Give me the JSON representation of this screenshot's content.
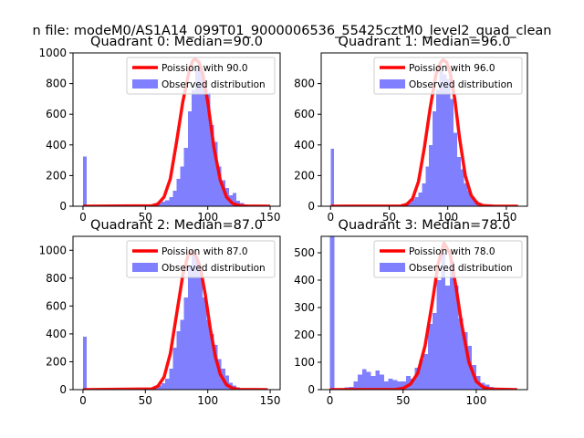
{
  "figure_title": "n file: modeM0/AS1A14_099T01_9000006536_55425cztM0_level2_quad_clean",
  "colors": {
    "hist": "#8080ff",
    "poisson": "#ff0000",
    "axis": "#000000"
  },
  "legend": {
    "observed": "Observed distribution"
  },
  "chart_data": [
    {
      "type": "histogram",
      "title": "Quadrant 0: Median=90.0",
      "median": 90.0,
      "poisson_label": "Poission with 90.0",
      "xlim": [
        -8,
        158
      ],
      "ylim": [
        0,
        1000
      ],
      "xticks": [
        0,
        50,
        100,
        150
      ],
      "yticks": [
        0,
        200,
        400,
        600,
        800,
        1000
      ],
      "bins": [
        [
          0,
          3,
          325
        ],
        [
          51,
          54,
          2
        ],
        [
          54,
          57,
          5
        ],
        [
          57,
          60,
          10
        ],
        [
          60,
          63,
          20
        ],
        [
          63,
          66,
          30
        ],
        [
          66,
          69,
          40
        ],
        [
          69,
          72,
          60
        ],
        [
          72,
          75,
          100
        ],
        [
          75,
          78,
          180
        ],
        [
          78,
          81,
          260
        ],
        [
          81,
          84,
          380
        ],
        [
          84,
          87,
          620
        ],
        [
          87,
          90,
          760
        ],
        [
          90,
          93,
          900
        ],
        [
          93,
          96,
          880
        ],
        [
          96,
          99,
          820
        ],
        [
          99,
          102,
          740
        ],
        [
          102,
          105,
          530
        ],
        [
          105,
          108,
          420
        ],
        [
          108,
          111,
          260
        ],
        [
          111,
          114,
          170
        ],
        [
          114,
          117,
          120
        ],
        [
          117,
          120,
          70
        ],
        [
          120,
          123,
          85
        ],
        [
          123,
          126,
          35
        ],
        [
          126,
          129,
          20
        ],
        [
          129,
          132,
          12
        ],
        [
          132,
          135,
          5
        ],
        [
          135,
          138,
          3
        ]
      ],
      "poisson": [
        [
          0,
          0
        ],
        [
          55,
          3
        ],
        [
          60,
          15
        ],
        [
          65,
          60
        ],
        [
          70,
          180
        ],
        [
          75,
          420
        ],
        [
          80,
          680
        ],
        [
          85,
          880
        ],
        [
          88,
          950
        ],
        [
          90,
          960
        ],
        [
          93,
          940
        ],
        [
          96,
          860
        ],
        [
          100,
          680
        ],
        [
          105,
          380
        ],
        [
          110,
          170
        ],
        [
          115,
          60
        ],
        [
          120,
          18
        ],
        [
          125,
          5
        ],
        [
          130,
          1
        ],
        [
          150,
          0
        ]
      ]
    },
    {
      "type": "histogram",
      "title": "Quadrant 1: Median=96.0",
      "median": 96.0,
      "poisson_label": "Poission with 96.0",
      "xlim": [
        -8,
        168
      ],
      "ylim": [
        0,
        1000
      ],
      "xticks": [
        0,
        50,
        100,
        150
      ],
      "yticks": [
        0,
        200,
        400,
        600,
        800
      ],
      "bins": [
        [
          0,
          3,
          375
        ],
        [
          57,
          60,
          3
        ],
        [
          60,
          63,
          8
        ],
        [
          63,
          66,
          15
        ],
        [
          66,
          69,
          25
        ],
        [
          69,
          72,
          45
        ],
        [
          72,
          75,
          60
        ],
        [
          75,
          78,
          90
        ],
        [
          78,
          81,
          150
        ],
        [
          81,
          84,
          260
        ],
        [
          84,
          87,
          400
        ],
        [
          87,
          90,
          620
        ],
        [
          90,
          93,
          760
        ],
        [
          93,
          96,
          880
        ],
        [
          96,
          99,
          860
        ],
        [
          99,
          102,
          830
        ],
        [
          102,
          105,
          700
        ],
        [
          105,
          108,
          480
        ],
        [
          108,
          111,
          320
        ],
        [
          111,
          114,
          240
        ],
        [
          114,
          117,
          150
        ],
        [
          117,
          120,
          100
        ],
        [
          120,
          123,
          60
        ],
        [
          123,
          126,
          35
        ],
        [
          126,
          129,
          20
        ],
        [
          129,
          132,
          10
        ],
        [
          132,
          135,
          5
        ],
        [
          135,
          138,
          2
        ]
      ],
      "poisson": [
        [
          0,
          0
        ],
        [
          60,
          2
        ],
        [
          65,
          12
        ],
        [
          70,
          50
        ],
        [
          75,
          160
        ],
        [
          80,
          380
        ],
        [
          85,
          640
        ],
        [
          90,
          860
        ],
        [
          94,
          940
        ],
        [
          96,
          955
        ],
        [
          99,
          940
        ],
        [
          102,
          870
        ],
        [
          106,
          700
        ],
        [
          110,
          450
        ],
        [
          115,
          200
        ],
        [
          120,
          70
        ],
        [
          125,
          20
        ],
        [
          130,
          5
        ],
        [
          140,
          0
        ],
        [
          160,
          0
        ]
      ]
    },
    {
      "type": "histogram",
      "title": "Quadrant 2: Median=87.0",
      "median": 87.0,
      "poisson_label": "Poission with 87.0",
      "xlim": [
        -8,
        158
      ],
      "ylim": [
        0,
        1100
      ],
      "xticks": [
        0,
        50,
        100,
        150
      ],
      "yticks": [
        0,
        200,
        400,
        600,
        800,
        1000
      ],
      "bins": [
        [
          0,
          3,
          380
        ],
        [
          51,
          54,
          3
        ],
        [
          54,
          57,
          8
        ],
        [
          57,
          60,
          15
        ],
        [
          60,
          63,
          30
        ],
        [
          63,
          66,
          45
        ],
        [
          66,
          69,
          80
        ],
        [
          69,
          72,
          150
        ],
        [
          72,
          75,
          300
        ],
        [
          75,
          78,
          420
        ],
        [
          78,
          81,
          500
        ],
        [
          81,
          84,
          660
        ],
        [
          84,
          87,
          880
        ],
        [
          87,
          90,
          1000
        ],
        [
          90,
          93,
          930
        ],
        [
          93,
          96,
          860
        ],
        [
          96,
          99,
          660
        ],
        [
          99,
          102,
          500
        ],
        [
          102,
          105,
          400
        ],
        [
          105,
          108,
          320
        ],
        [
          108,
          111,
          220
        ],
        [
          111,
          114,
          150
        ],
        [
          114,
          117,
          100
        ],
        [
          117,
          120,
          50
        ],
        [
          120,
          123,
          30
        ],
        [
          123,
          126,
          15
        ],
        [
          126,
          129,
          8
        ],
        [
          129,
          132,
          4
        ]
      ],
      "poisson": [
        [
          0,
          0
        ],
        [
          55,
          5
        ],
        [
          60,
          25
        ],
        [
          65,
          90
        ],
        [
          70,
          260
        ],
        [
          75,
          540
        ],
        [
          80,
          820
        ],
        [
          84,
          960
        ],
        [
          87,
          990
        ],
        [
          90,
          970
        ],
        [
          94,
          880
        ],
        [
          98,
          680
        ],
        [
          102,
          440
        ],
        [
          106,
          240
        ],
        [
          110,
          110
        ],
        [
          115,
          35
        ],
        [
          120,
          10
        ],
        [
          125,
          2
        ],
        [
          148,
          0
        ]
      ]
    },
    {
      "type": "histogram",
      "title": "Quadrant 3: Median=78.0",
      "median": 78.0,
      "poisson_label": "Poission with 78.0",
      "xlim": [
        -6,
        135
      ],
      "ylim": [
        0,
        560
      ],
      "xticks": [
        0,
        50,
        100
      ],
      "yticks": [
        0,
        100,
        200,
        300,
        400,
        500
      ],
      "bins": [
        [
          0,
          3,
          560
        ],
        [
          10,
          13,
          8
        ],
        [
          13,
          16,
          10
        ],
        [
          16,
          19,
          30
        ],
        [
          19,
          22,
          55
        ],
        [
          22,
          25,
          75
        ],
        [
          25,
          28,
          65
        ],
        [
          28,
          31,
          50
        ],
        [
          31,
          34,
          70
        ],
        [
          34,
          37,
          55
        ],
        [
          37,
          40,
          30
        ],
        [
          40,
          43,
          40
        ],
        [
          43,
          46,
          35
        ],
        [
          46,
          49,
          30
        ],
        [
          49,
          52,
          30
        ],
        [
          52,
          55,
          50
        ],
        [
          55,
          58,
          40
        ],
        [
          58,
          61,
          80
        ],
        [
          61,
          64,
          110
        ],
        [
          64,
          67,
          130
        ],
        [
          67,
          70,
          240
        ],
        [
          70,
          73,
          280
        ],
        [
          73,
          76,
          400
        ],
        [
          76,
          79,
          500
        ],
        [
          79,
          82,
          380
        ],
        [
          82,
          85,
          470
        ],
        [
          85,
          88,
          380
        ],
        [
          88,
          91,
          260
        ],
        [
          91,
          94,
          210
        ],
        [
          94,
          97,
          160
        ],
        [
          97,
          100,
          90
        ],
        [
          100,
          103,
          50
        ],
        [
          103,
          106,
          25
        ],
        [
          106,
          109,
          18
        ],
        [
          109,
          112,
          10
        ],
        [
          112,
          115,
          5
        ],
        [
          115,
          118,
          3
        ]
      ],
      "poisson": [
        [
          0,
          0
        ],
        [
          45,
          1
        ],
        [
          50,
          5
        ],
        [
          55,
          20
        ],
        [
          60,
          60
        ],
        [
          65,
          160
        ],
        [
          70,
          320
        ],
        [
          74,
          460
        ],
        [
          78,
          535
        ],
        [
          82,
          500
        ],
        [
          86,
          380
        ],
        [
          90,
          240
        ],
        [
          95,
          100
        ],
        [
          100,
          30
        ],
        [
          105,
          8
        ],
        [
          110,
          2
        ],
        [
          128,
          0
        ]
      ]
    }
  ]
}
